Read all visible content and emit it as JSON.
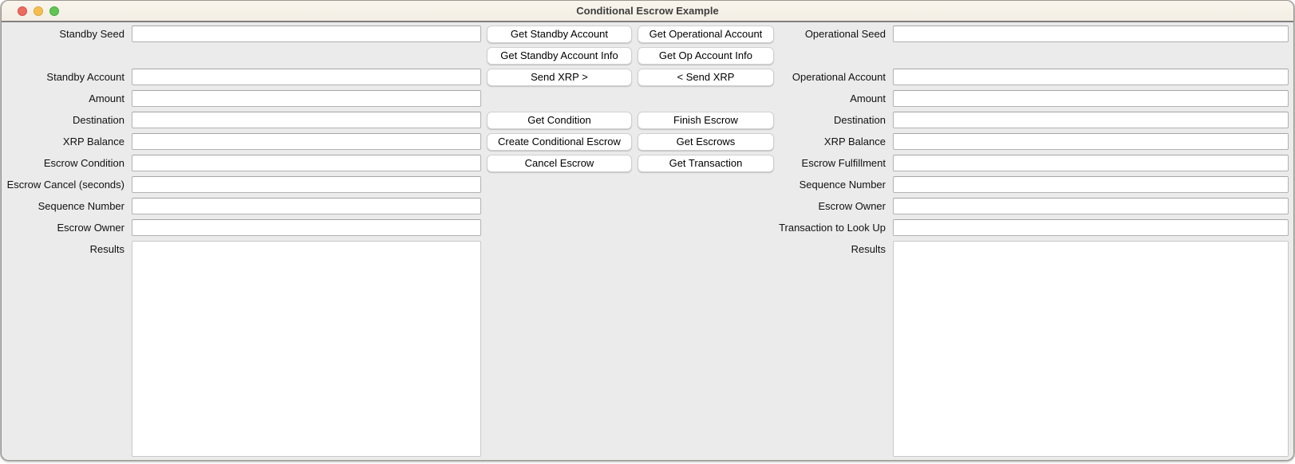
{
  "window": {
    "title": "Conditional Escrow Example",
    "titlebar_color": "#f6f1e8",
    "content_color": "#ebebeb",
    "traffic_lights": {
      "close_color": "#ed6a5e",
      "minimize_color": "#f5bf4f",
      "zoom_color": "#61c554"
    }
  },
  "standby": {
    "fields": [
      {
        "label": "Standby Seed",
        "value": "",
        "placeholder": ""
      },
      {
        "label": "Standby Account",
        "value": "",
        "placeholder": ""
      },
      {
        "label": "Amount",
        "value": "",
        "placeholder": ""
      },
      {
        "label": "Destination",
        "value": "",
        "placeholder": ""
      },
      {
        "label": "XRP Balance",
        "value": "",
        "placeholder": ""
      },
      {
        "label": "Escrow Condition",
        "value": "",
        "placeholder": ""
      },
      {
        "label": "Escrow Cancel (seconds)",
        "value": "",
        "placeholder": ""
      },
      {
        "label": "Sequence Number",
        "value": "",
        "placeholder": ""
      },
      {
        "label": "Escrow Owner",
        "value": "",
        "placeholder": ""
      }
    ],
    "results": {
      "label": "Results",
      "value": ""
    }
  },
  "operational": {
    "fields": [
      {
        "label": "Operational Seed",
        "value": "",
        "placeholder": ""
      },
      {
        "label": "Operational Account",
        "value": "",
        "placeholder": ""
      },
      {
        "label": "Amount",
        "value": "",
        "placeholder": ""
      },
      {
        "label": "Destination",
        "value": "",
        "placeholder": ""
      },
      {
        "label": "XRP Balance",
        "value": "",
        "placeholder": ""
      },
      {
        "label": "Escrow Fulfillment",
        "value": "",
        "placeholder": ""
      },
      {
        "label": "Sequence Number",
        "value": "",
        "placeholder": ""
      },
      {
        "label": "Escrow Owner",
        "value": "",
        "placeholder": ""
      },
      {
        "label": "Transaction to Look Up",
        "value": "",
        "placeholder": ""
      }
    ],
    "results": {
      "label": "Results",
      "value": ""
    }
  },
  "actions": {
    "rows": [
      {
        "left": "Get Standby Account",
        "right": "Get Operational Account"
      },
      {
        "left": "Get Standby Account Info",
        "right": "Get Op Account Info"
      },
      {
        "left": "Send XRP >",
        "right": "< Send XRP"
      },
      {
        "left": "Get Condition",
        "right": "Finish Escrow"
      },
      {
        "left": "Create Conditional Escrow",
        "right": "Get Escrows"
      },
      {
        "left": "Cancel Escrow",
        "right": "Get Transaction"
      }
    ]
  }
}
